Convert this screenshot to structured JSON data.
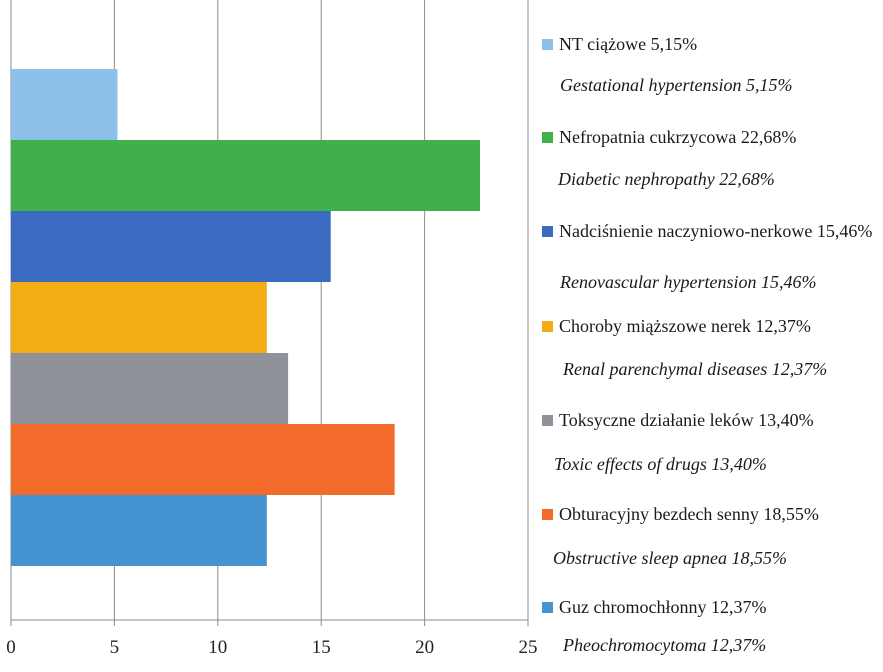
{
  "chart_data": {
    "type": "bar",
    "orientation": "horizontal",
    "title": "",
    "xlabel": "",
    "ylabel": "",
    "xlim": [
      0,
      25
    ],
    "x_ticks": [
      0,
      5,
      10,
      15,
      20,
      25
    ],
    "grid": true,
    "legend_position": "right",
    "series": [
      {
        "name": "NT ciążowe 5,15%",
        "name_en": "Gestational hypertension 5,15%",
        "value": 5.15,
        "color": "#8ec1ea"
      },
      {
        "name": "Nefropatnia cukrzycowa 22,68%",
        "name_en": "Diabetic nephropathy 22,68%",
        "value": 22.68,
        "color": "#40b04a"
      },
      {
        "name": "Nadciśnienie naczyniowo-nerkowe 15,46%",
        "name_en": "Renovascular hypertension 15,46%",
        "value": 15.46,
        "color": "#3a6bc0"
      },
      {
        "name": "Choroby miąższowe nerek 12,37%",
        "name_en": "Renal parenchymal diseases 12,37%",
        "value": 12.37,
        "color": "#f4ac14"
      },
      {
        "name": "Toksyczne działanie leków 13,40%",
        "name_en": "Toxic effects of drugs 13,40%",
        "value": 13.4,
        "color": "#8f9299"
      },
      {
        "name": "Obturacyjny bezdech senny 18,55%",
        "name_en": "Obstructive sleep apnea 18,55%",
        "value": 18.55,
        "color": "#f26b2a"
      },
      {
        "name": "Guz chromochłonny 12,37%",
        "name_en": "Pheochromocytoma 12,37%",
        "value": 12.37,
        "color": "#4593d0"
      }
    ]
  }
}
